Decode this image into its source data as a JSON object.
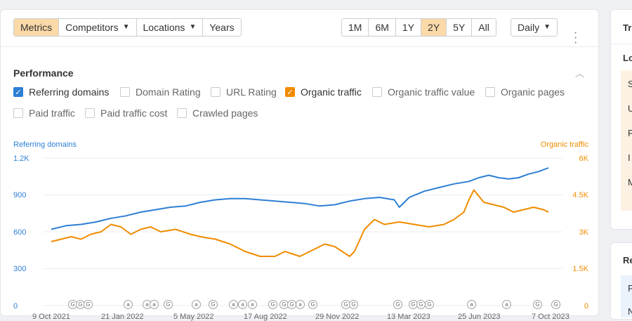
{
  "toolbar": {
    "tabs": [
      {
        "label": "Metrics",
        "active": true
      },
      {
        "label": "Competitors",
        "dropdown": true
      },
      {
        "label": "Locations",
        "dropdown": true
      },
      {
        "label": "Years"
      }
    ],
    "ranges": [
      {
        "label": "1M"
      },
      {
        "label": "6M"
      },
      {
        "label": "1Y"
      },
      {
        "label": "2Y",
        "active": true
      },
      {
        "label": "5Y"
      },
      {
        "label": "All"
      }
    ],
    "interval": "Daily"
  },
  "performance": {
    "title": "Performance",
    "checkboxes": [
      {
        "label": "Referring domains",
        "checked": true,
        "color": "#2d7fd4"
      },
      {
        "label": "Domain Rating",
        "checked": false
      },
      {
        "label": "URL Rating",
        "checked": false
      },
      {
        "label": "Organic traffic",
        "checked": true,
        "color": "#f08c00"
      },
      {
        "label": "Organic traffic value",
        "checked": false
      },
      {
        "label": "Organic pages",
        "checked": false
      },
      {
        "label": "Paid traffic",
        "checked": false
      },
      {
        "label": "Paid traffic cost",
        "checked": false
      },
      {
        "label": "Crawled pages",
        "checked": false
      }
    ]
  },
  "chart_data": {
    "type": "line",
    "left_axis": {
      "label": "Referring domains",
      "ticks": [
        "1.2K",
        "900",
        "600",
        "300",
        "0"
      ],
      "range": [
        0,
        1200
      ],
      "color": "#2d7fd4"
    },
    "right_axis": {
      "label": "Organic traffic",
      "ticks": [
        "6K",
        "4.5K",
        "3K",
        "1.5K",
        "0"
      ],
      "range": [
        0,
        6000
      ],
      "color": "#f08c00"
    },
    "x_labels": [
      "9 Oct 2021",
      "21 Jan 2022",
      "5 May 2022",
      "17 Aug 2022",
      "29 Nov 2022",
      "13 Mar 2023",
      "25 Jun 2023",
      "7 Oct 2023"
    ],
    "series": [
      {
        "name": "Referring domains",
        "axis": "left",
        "color": "#2d7fd4",
        "points": [
          [
            0,
            620
          ],
          [
            0.03,
            650
          ],
          [
            0.06,
            660
          ],
          [
            0.09,
            680
          ],
          [
            0.12,
            710
          ],
          [
            0.15,
            730
          ],
          [
            0.18,
            760
          ],
          [
            0.21,
            780
          ],
          [
            0.24,
            800
          ],
          [
            0.27,
            810
          ],
          [
            0.3,
            840
          ],
          [
            0.33,
            860
          ],
          [
            0.36,
            870
          ],
          [
            0.39,
            870
          ],
          [
            0.42,
            860
          ],
          [
            0.45,
            850
          ],
          [
            0.48,
            840
          ],
          [
            0.51,
            830
          ],
          [
            0.54,
            810
          ],
          [
            0.57,
            820
          ],
          [
            0.6,
            850
          ],
          [
            0.63,
            870
          ],
          [
            0.66,
            880
          ],
          [
            0.69,
            860
          ],
          [
            0.7,
            800
          ],
          [
            0.72,
            880
          ],
          [
            0.75,
            930
          ],
          [
            0.78,
            960
          ],
          [
            0.81,
            990
          ],
          [
            0.84,
            1010
          ],
          [
            0.86,
            1040
          ],
          [
            0.88,
            1060
          ],
          [
            0.9,
            1040
          ],
          [
            0.92,
            1030
          ],
          [
            0.94,
            1040
          ],
          [
            0.96,
            1070
          ],
          [
            0.98,
            1090
          ],
          [
            1.0,
            1120
          ]
        ]
      },
      {
        "name": "Organic traffic",
        "axis": "right",
        "color": "#f08c00",
        "points": [
          [
            0,
            2600
          ],
          [
            0.02,
            2700
          ],
          [
            0.04,
            2800
          ],
          [
            0.06,
            2700
          ],
          [
            0.08,
            2900
          ],
          [
            0.1,
            3000
          ],
          [
            0.12,
            3300
          ],
          [
            0.14,
            3200
          ],
          [
            0.16,
            2900
          ],
          [
            0.18,
            3100
          ],
          [
            0.2,
            3200
          ],
          [
            0.22,
            3000
          ],
          [
            0.25,
            3100
          ],
          [
            0.28,
            2900
          ],
          [
            0.3,
            2800
          ],
          [
            0.33,
            2700
          ],
          [
            0.36,
            2500
          ],
          [
            0.39,
            2200
          ],
          [
            0.42,
            2000
          ],
          [
            0.45,
            2000
          ],
          [
            0.47,
            2200
          ],
          [
            0.5,
            2000
          ],
          [
            0.52,
            2200
          ],
          [
            0.55,
            2500
          ],
          [
            0.57,
            2400
          ],
          [
            0.6,
            2000
          ],
          [
            0.61,
            2200
          ],
          [
            0.63,
            3100
          ],
          [
            0.65,
            3500
          ],
          [
            0.67,
            3300
          ],
          [
            0.7,
            3400
          ],
          [
            0.73,
            3300
          ],
          [
            0.76,
            3200
          ],
          [
            0.79,
            3300
          ],
          [
            0.81,
            3500
          ],
          [
            0.83,
            3800
          ],
          [
            0.84,
            4300
          ],
          [
            0.85,
            4700
          ],
          [
            0.87,
            4200
          ],
          [
            0.89,
            4100
          ],
          [
            0.91,
            4000
          ],
          [
            0.93,
            3800
          ],
          [
            0.95,
            3900
          ],
          [
            0.97,
            4000
          ],
          [
            0.99,
            3900
          ],
          [
            1.0,
            3800
          ]
        ]
      }
    ]
  },
  "annotations": [
    "G",
    "G",
    "G",
    "a",
    "a",
    "a",
    "G",
    "a",
    "G",
    "a",
    "a",
    "a",
    "G",
    "G",
    "G",
    "a",
    "G",
    "G",
    "G",
    "G",
    "G",
    "G",
    "G",
    "a",
    "a",
    "G",
    "G"
  ],
  "right_panel": {
    "top_letters": "Tr",
    "section": "Lo",
    "rows": [
      "S",
      "U",
      "F",
      "I",
      "M"
    ],
    "bottom": "Re",
    "bottom_rows": [
      "F",
      "N"
    ]
  }
}
